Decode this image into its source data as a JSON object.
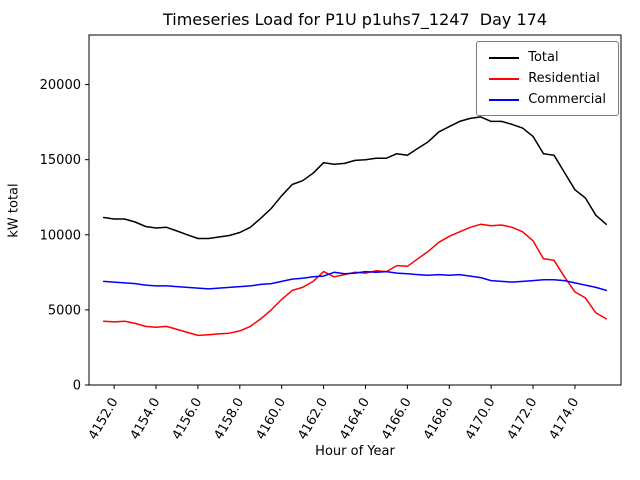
{
  "chart_data": {
    "type": "line",
    "title": "Timeseries Load for P1U p1uhs7_1247  Day 174",
    "xlabel": "Hour of Year",
    "ylabel": "kW total",
    "xlim": [
      4150.8,
      4176.2
    ],
    "ylim": [
      0,
      23300
    ],
    "grid": false,
    "legend_position": "upper right",
    "xticks": [
      {
        "value": 4152,
        "label": "4152.0"
      },
      {
        "value": 4154,
        "label": "4154.0"
      },
      {
        "value": 4156,
        "label": "4156.0"
      },
      {
        "value": 4158,
        "label": "4158.0"
      },
      {
        "value": 4160,
        "label": "4160.0"
      },
      {
        "value": 4162,
        "label": "4162.0"
      },
      {
        "value": 4164,
        "label": "4164.0"
      },
      {
        "value": 4166,
        "label": "4166.0"
      },
      {
        "value": 4168,
        "label": "4168.0"
      },
      {
        "value": 4170,
        "label": "4170.0"
      },
      {
        "value": 4172,
        "label": "4172.0"
      },
      {
        "value": 4174,
        "label": "4174.0"
      }
    ],
    "yticks": [
      {
        "value": 0,
        "label": "0"
      },
      {
        "value": 5000,
        "label": "5000"
      },
      {
        "value": 10000,
        "label": "10000"
      },
      {
        "value": 15000,
        "label": "15000"
      },
      {
        "value": 20000,
        "label": "20000"
      }
    ],
    "x": [
      4151.5,
      4152,
      4152.5,
      4153,
      4153.5,
      4154,
      4154.5,
      4155,
      4155.5,
      4156,
      4156.5,
      4157,
      4157.5,
      4158,
      4158.5,
      4159,
      4159.5,
      4160,
      4160.5,
      4161,
      4161.5,
      4162,
      4162.5,
      4163,
      4163.5,
      4164,
      4164.5,
      4165,
      4165.5,
      4166,
      4166.5,
      4167,
      4167.5,
      4168,
      4168.5,
      4169,
      4169.5,
      4170,
      4170.5,
      4171,
      4171.5,
      4172,
      4172.5,
      4173,
      4173.5,
      4174,
      4174.5,
      4175,
      4175.5
    ],
    "series": [
      {
        "name": "Total",
        "color": "#000000",
        "values": [
          11150,
          11050,
          11050,
          10850,
          10550,
          10450,
          10500,
          10250,
          10000,
          9750,
          9750,
          9850,
          9950,
          10150,
          10500,
          11100,
          11750,
          12600,
          13350,
          13600,
          14100,
          14800,
          14700,
          14750,
          14950,
          15000,
          15100,
          15100,
          15400,
          15300,
          15750,
          16200,
          16850,
          17200,
          17550,
          17750,
          17850,
          17550,
          17550,
          17350,
          17100,
          16550,
          15400,
          15300,
          14150,
          13000,
          12450,
          11300,
          10700
        ]
      },
      {
        "name": "Residential",
        "color": "#ff0000",
        "values": [
          4250,
          4200,
          4250,
          4100,
          3900,
          3850,
          3900,
          3700,
          3500,
          3300,
          3350,
          3400,
          3450,
          3600,
          3900,
          4400,
          5000,
          5700,
          6300,
          6500,
          6900,
          7550,
          7200,
          7350,
          7500,
          7450,
          7600,
          7550,
          7950,
          7900,
          8400,
          8900,
          9500,
          9900,
          10200,
          10500,
          10700,
          10600,
          10650,
          10500,
          10200,
          9600,
          8400,
          8300,
          7200,
          6200,
          5800,
          4800,
          4400
        ]
      },
      {
        "name": "Commercial",
        "color": "#0000ff",
        "values": [
          6900,
          6850,
          6800,
          6750,
          6650,
          6600,
          6600,
          6550,
          6500,
          6450,
          6400,
          6450,
          6500,
          6550,
          6600,
          6700,
          6750,
          6900,
          7050,
          7100,
          7200,
          7250,
          7500,
          7400,
          7450,
          7550,
          7500,
          7550,
          7450,
          7400,
          7350,
          7300,
          7350,
          7300,
          7350,
          7250,
          7150,
          6950,
          6900,
          6850,
          6900,
          6950,
          7000,
          7000,
          6950,
          6800,
          6650,
          6500,
          6300
        ]
      }
    ]
  }
}
